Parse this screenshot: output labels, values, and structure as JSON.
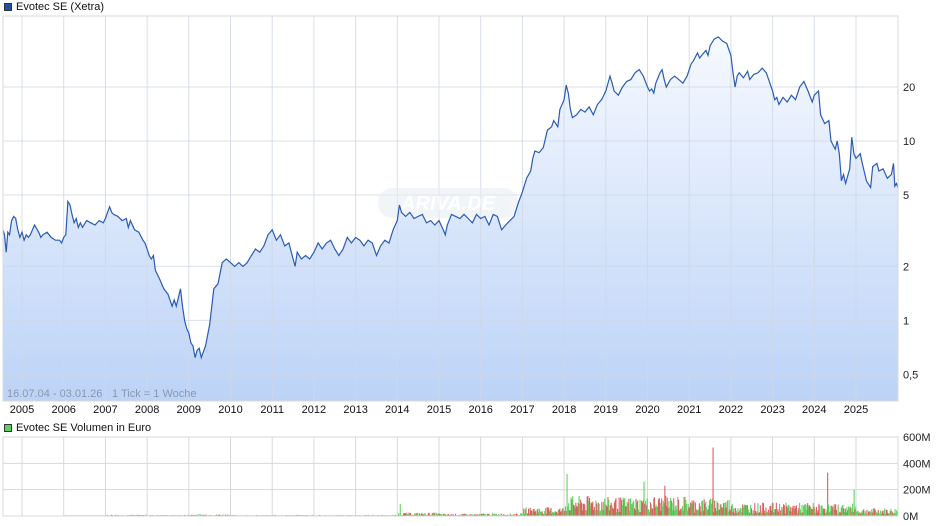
{
  "price_chart": {
    "legend_label": "Evotec SE (Xetra)",
    "legend_color": "#1f4fa8",
    "info_range": "16.07.04 - 03.01.26",
    "info_tick": "1 Tick = 1 Woche",
    "watermark": "ARIVA.DE"
  },
  "volume_chart": {
    "legend_label": "Evotec SE Volumen in Euro",
    "legend_color": "#5ccf5c",
    "up_color": "#5fd35f",
    "down_color": "#d96060"
  },
  "colors": {
    "line": "#2a5bb5",
    "fill_top": "#f4f8ff",
    "fill_bottom": "#bcd3f7",
    "grid": "#d8d8d8"
  },
  "chart_data": [
    {
      "type": "line",
      "title": "Evotec SE (Xetra)",
      "xlabel": "",
      "ylabel": "",
      "yscale": "log",
      "ylim": [
        0.4,
        45
      ],
      "xlim": [
        2004.54,
        2026.01
      ],
      "grid": true,
      "legend_position": "top-left",
      "x_ticks": [
        "2005",
        "2006",
        "2007",
        "2008",
        "2009",
        "2010",
        "2011",
        "2012",
        "2013",
        "2014",
        "2015",
        "2016",
        "2017",
        "2018",
        "2019",
        "2020",
        "2021",
        "2022",
        "2023",
        "2024",
        "2025"
      ],
      "y_ticks": [
        {
          "value": 20,
          "label": "20"
        },
        {
          "value": 10,
          "label": "10"
        },
        {
          "value": 5,
          "label": "5"
        },
        {
          "value": 2,
          "label": "2"
        },
        {
          "value": 1,
          "label": "1"
        },
        {
          "value": 0.5,
          "label": "0,5"
        }
      ],
      "annotations": [
        "16.07.04 - 03.01.26",
        "1 Tick = 1 Woche"
      ],
      "points": [
        [
          2004.54,
          3.2
        ],
        [
          2004.58,
          3.0
        ],
        [
          2004.62,
          2.4
        ],
        [
          2004.66,
          3.1
        ],
        [
          2004.7,
          3.0
        ],
        [
          2004.75,
          3.6
        ],
        [
          2004.8,
          3.8
        ],
        [
          2004.85,
          3.7
        ],
        [
          2004.9,
          3.2
        ],
        [
          2004.95,
          2.9
        ],
        [
          2005.0,
          3.1
        ],
        [
          2005.05,
          2.8
        ],
        [
          2005.1,
          3.0
        ],
        [
          2005.15,
          2.9
        ],
        [
          2005.2,
          3.0
        ],
        [
          2005.3,
          3.4
        ],
        [
          2005.4,
          3.1
        ],
        [
          2005.45,
          2.9
        ],
        [
          2005.5,
          3.0
        ],
        [
          2005.6,
          3.1
        ],
        [
          2005.7,
          2.9
        ],
        [
          2005.8,
          2.8
        ],
        [
          2005.9,
          2.8
        ],
        [
          2005.95,
          2.7
        ],
        [
          2006.0,
          2.9
        ],
        [
          2006.05,
          3.0
        ],
        [
          2006.1,
          4.6
        ],
        [
          2006.15,
          4.4
        ],
        [
          2006.2,
          3.9
        ],
        [
          2006.25,
          3.5
        ],
        [
          2006.3,
          3.7
        ],
        [
          2006.35,
          3.3
        ],
        [
          2006.4,
          3.5
        ],
        [
          2006.45,
          3.3
        ],
        [
          2006.55,
          3.6
        ],
        [
          2006.65,
          3.5
        ],
        [
          2006.75,
          3.4
        ],
        [
          2006.85,
          3.6
        ],
        [
          2006.95,
          3.5
        ],
        [
          2007.0,
          3.7
        ],
        [
          2007.05,
          4.0
        ],
        [
          2007.1,
          4.3
        ],
        [
          2007.15,
          4.0
        ],
        [
          2007.2,
          3.9
        ],
        [
          2007.3,
          3.8
        ],
        [
          2007.4,
          3.6
        ],
        [
          2007.5,
          3.7
        ],
        [
          2007.55,
          3.3
        ],
        [
          2007.6,
          3.6
        ],
        [
          2007.7,
          3.2
        ],
        [
          2007.8,
          3.1
        ],
        [
          2007.9,
          2.8
        ],
        [
          2007.95,
          2.7
        ],
        [
          2008.0,
          2.5
        ],
        [
          2008.05,
          2.3
        ],
        [
          2008.1,
          2.2
        ],
        [
          2008.15,
          2.3
        ],
        [
          2008.2,
          1.9
        ],
        [
          2008.3,
          1.7
        ],
        [
          2008.4,
          1.5
        ],
        [
          2008.5,
          1.4
        ],
        [
          2008.6,
          1.2
        ],
        [
          2008.65,
          1.3
        ],
        [
          2008.7,
          1.2
        ],
        [
          2008.8,
          1.5
        ],
        [
          2008.85,
          1.2
        ],
        [
          2008.9,
          1.0
        ],
        [
          2008.95,
          0.9
        ],
        [
          2009.0,
          0.85
        ],
        [
          2009.05,
          0.75
        ],
        [
          2009.1,
          0.72
        ],
        [
          2009.15,
          0.62
        ],
        [
          2009.2,
          0.68
        ],
        [
          2009.25,
          0.7
        ],
        [
          2009.3,
          0.62
        ],
        [
          2009.4,
          0.72
        ],
        [
          2009.5,
          0.95
        ],
        [
          2009.6,
          1.5
        ],
        [
          2009.7,
          1.6
        ],
        [
          2009.8,
          2.1
        ],
        [
          2009.9,
          2.2
        ],
        [
          2010.0,
          2.1
        ],
        [
          2010.1,
          2.0
        ],
        [
          2010.2,
          2.1
        ],
        [
          2010.3,
          2.0
        ],
        [
          2010.4,
          2.1
        ],
        [
          2010.5,
          2.3
        ],
        [
          2010.6,
          2.5
        ],
        [
          2010.7,
          2.4
        ],
        [
          2010.8,
          2.6
        ],
        [
          2010.9,
          3.0
        ],
        [
          2011.0,
          3.2
        ],
        [
          2011.1,
          2.8
        ],
        [
          2011.2,
          3.0
        ],
        [
          2011.3,
          2.6
        ],
        [
          2011.4,
          2.7
        ],
        [
          2011.5,
          2.2
        ],
        [
          2011.55,
          2.0
        ],
        [
          2011.6,
          2.4
        ],
        [
          2011.7,
          2.2
        ],
        [
          2011.8,
          2.3
        ],
        [
          2011.9,
          2.2
        ],
        [
          2012.0,
          2.4
        ],
        [
          2012.1,
          2.7
        ],
        [
          2012.2,
          2.5
        ],
        [
          2012.3,
          2.7
        ],
        [
          2012.4,
          2.8
        ],
        [
          2012.5,
          2.5
        ],
        [
          2012.6,
          2.3
        ],
        [
          2012.7,
          2.5
        ],
        [
          2012.8,
          2.9
        ],
        [
          2012.9,
          2.7
        ],
        [
          2013.0,
          2.9
        ],
        [
          2013.1,
          2.8
        ],
        [
          2013.2,
          2.6
        ],
        [
          2013.3,
          2.8
        ],
        [
          2013.4,
          2.7
        ],
        [
          2013.5,
          2.3
        ],
        [
          2013.6,
          2.6
        ],
        [
          2013.7,
          2.8
        ],
        [
          2013.8,
          2.7
        ],
        [
          2013.9,
          3.2
        ],
        [
          2014.0,
          3.6
        ],
        [
          2014.05,
          4.4
        ],
        [
          2014.1,
          4.0
        ],
        [
          2014.2,
          3.8
        ],
        [
          2014.3,
          4.0
        ],
        [
          2014.4,
          3.7
        ],
        [
          2014.5,
          3.8
        ],
        [
          2014.6,
          3.9
        ],
        [
          2014.7,
          3.5
        ],
        [
          2014.8,
          3.6
        ],
        [
          2014.9,
          3.4
        ],
        [
          2015.0,
          3.6
        ],
        [
          2015.1,
          3.2
        ],
        [
          2015.15,
          3.0
        ],
        [
          2015.2,
          3.4
        ],
        [
          2015.3,
          3.9
        ],
        [
          2015.4,
          3.8
        ],
        [
          2015.5,
          3.7
        ],
        [
          2015.6,
          3.9
        ],
        [
          2015.7,
          3.7
        ],
        [
          2015.8,
          3.5
        ],
        [
          2015.9,
          3.9
        ],
        [
          2016.0,
          3.7
        ],
        [
          2016.1,
          3.8
        ],
        [
          2016.2,
          3.4
        ],
        [
          2016.3,
          3.9
        ],
        [
          2016.4,
          3.8
        ],
        [
          2016.5,
          3.2
        ],
        [
          2016.6,
          3.4
        ],
        [
          2016.7,
          3.6
        ],
        [
          2016.8,
          3.8
        ],
        [
          2016.9,
          4.5
        ],
        [
          2017.0,
          5.2
        ],
        [
          2017.1,
          6.2
        ],
        [
          2017.2,
          6.8
        ],
        [
          2017.25,
          8.0
        ],
        [
          2017.3,
          8.8
        ],
        [
          2017.4,
          8.6
        ],
        [
          2017.5,
          9.2
        ],
        [
          2017.6,
          11.5
        ],
        [
          2017.7,
          12.0
        ],
        [
          2017.75,
          13.0
        ],
        [
          2017.85,
          12.0
        ],
        [
          2017.9,
          15.0
        ],
        [
          2018.0,
          17.0
        ],
        [
          2018.05,
          20.5
        ],
        [
          2018.1,
          18.5
        ],
        [
          2018.15,
          15.0
        ],
        [
          2018.2,
          13.5
        ],
        [
          2018.3,
          14.0
        ],
        [
          2018.4,
          15.0
        ],
        [
          2018.5,
          14.5
        ],
        [
          2018.6,
          15.5
        ],
        [
          2018.7,
          14.0
        ],
        [
          2018.8,
          16.0
        ],
        [
          2018.9,
          17.0
        ],
        [
          2019.0,
          19.0
        ],
        [
          2019.1,
          23.0
        ],
        [
          2019.15,
          21.0
        ],
        [
          2019.2,
          19.0
        ],
        [
          2019.3,
          18.0
        ],
        [
          2019.4,
          20.0
        ],
        [
          2019.5,
          21.5
        ],
        [
          2019.6,
          22.0
        ],
        [
          2019.7,
          24.0
        ],
        [
          2019.8,
          25.0
        ],
        [
          2019.9,
          23.0
        ],
        [
          2020.0,
          20.0
        ],
        [
          2020.05,
          19.0
        ],
        [
          2020.1,
          19.5
        ],
        [
          2020.15,
          18.5
        ],
        [
          2020.2,
          21.0
        ],
        [
          2020.3,
          24.0
        ],
        [
          2020.35,
          25.0
        ],
        [
          2020.4,
          22.0
        ],
        [
          2020.45,
          20.0
        ],
        [
          2020.55,
          22.0
        ],
        [
          2020.65,
          23.0
        ],
        [
          2020.75,
          22.0
        ],
        [
          2020.85,
          21.0
        ],
        [
          2020.95,
          23.0
        ],
        [
          2021.0,
          25.0
        ],
        [
          2021.05,
          27.0
        ],
        [
          2021.1,
          28.0
        ],
        [
          2021.2,
          31.0
        ],
        [
          2021.25,
          29.0
        ],
        [
          2021.3,
          30.0
        ],
        [
          2021.4,
          32.0
        ],
        [
          2021.45,
          30.0
        ],
        [
          2021.5,
          34.0
        ],
        [
          2021.6,
          37.0
        ],
        [
          2021.7,
          38.0
        ],
        [
          2021.8,
          36.0
        ],
        [
          2021.9,
          35.0
        ],
        [
          2022.0,
          30.0
        ],
        [
          2022.05,
          24.0
        ],
        [
          2022.1,
          20.0
        ],
        [
          2022.15,
          23.0
        ],
        [
          2022.2,
          24.0
        ],
        [
          2022.3,
          22.5
        ],
        [
          2022.4,
          24.5
        ],
        [
          2022.45,
          22.0
        ],
        [
          2022.55,
          23.5
        ],
        [
          2022.65,
          24.0
        ],
        [
          2022.75,
          25.5
        ],
        [
          2022.85,
          24.0
        ],
        [
          2023.0,
          19.0
        ],
        [
          2023.05,
          17.0
        ],
        [
          2023.1,
          17.5
        ],
        [
          2023.15,
          16.0
        ],
        [
          2023.25,
          17.5
        ],
        [
          2023.35,
          16.5
        ],
        [
          2023.45,
          18.0
        ],
        [
          2023.55,
          17.0
        ],
        [
          2023.65,
          20.0
        ],
        [
          2023.75,
          21.5
        ],
        [
          2023.85,
          19.0
        ],
        [
          2023.95,
          16.5
        ],
        [
          2024.0,
          18.0
        ],
        [
          2024.1,
          19.0
        ],
        [
          2024.15,
          14.0
        ],
        [
          2024.25,
          12.5
        ],
        [
          2024.35,
          13.0
        ],
        [
          2024.4,
          10.0
        ],
        [
          2024.5,
          9.0
        ],
        [
          2024.55,
          10.0
        ],
        [
          2024.6,
          8.5
        ],
        [
          2024.65,
          6.0
        ],
        [
          2024.7,
          6.5
        ],
        [
          2024.75,
          5.8
        ],
        [
          2024.85,
          7.0
        ],
        [
          2024.9,
          10.5
        ],
        [
          2024.95,
          8.5
        ],
        [
          2025.0,
          8.0
        ],
        [
          2025.1,
          8.5
        ],
        [
          2025.15,
          7.5
        ],
        [
          2025.25,
          6.0
        ],
        [
          2025.35,
          5.5
        ],
        [
          2025.4,
          7.2
        ],
        [
          2025.5,
          7.5
        ],
        [
          2025.55,
          6.8
        ],
        [
          2025.65,
          7.0
        ],
        [
          2025.75,
          6.2
        ],
        [
          2025.85,
          6.5
        ],
        [
          2025.9,
          7.5
        ],
        [
          2025.93,
          5.6
        ],
        [
          2025.97,
          5.8
        ],
        [
          2026.01,
          5.5
        ]
      ]
    },
    {
      "type": "bar",
      "title": "Evotec SE Volumen in Euro",
      "xlabel": "",
      "ylabel": "",
      "ylim": [
        0,
        600
      ],
      "y_unit": "M EUR",
      "grid": true,
      "legend_position": "top-left",
      "y_ticks": [
        {
          "value": 600,
          "label": "600M"
        },
        {
          "value": 400,
          "label": "400M"
        },
        {
          "value": 200,
          "label": "200M"
        },
        {
          "value": 0,
          "label": "0M"
        }
      ],
      "yearly_typical_weekly_volume_M": [
        [
          2005,
          0
        ],
        [
          2006,
          3
        ],
        [
          2007,
          6
        ],
        [
          2008,
          5
        ],
        [
          2009,
          8
        ],
        [
          2010,
          4
        ],
        [
          2011,
          5
        ],
        [
          2012,
          4
        ],
        [
          2013,
          5
        ],
        [
          2014,
          15
        ],
        [
          2015,
          10
        ],
        [
          2016,
          12
        ],
        [
          2017,
          40
        ],
        [
          2018,
          90
        ],
        [
          2019,
          85
        ],
        [
          2020,
          90
        ],
        [
          2021,
          80
        ],
        [
          2022,
          60
        ],
        [
          2023,
          60
        ],
        [
          2024,
          55
        ],
        [
          2025,
          35
        ]
      ],
      "peaks_M": [
        [
          2014.05,
          90
        ],
        [
          2018.05,
          320
        ],
        [
          2019.9,
          260
        ],
        [
          2020.4,
          230
        ],
        [
          2021.55,
          520
        ],
        [
          2024.3,
          330
        ],
        [
          2024.95,
          200
        ]
      ]
    }
  ]
}
